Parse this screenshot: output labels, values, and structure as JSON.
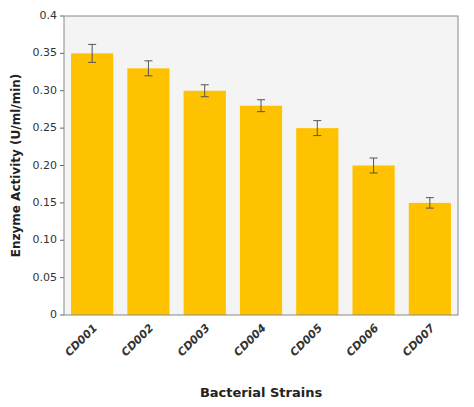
{
  "chart_data": {
    "type": "bar",
    "categories": [
      "CD001",
      "CD002",
      "CD003",
      "CD004",
      "CD005",
      "CD006",
      "CD007"
    ],
    "values": [
      0.35,
      0.33,
      0.3,
      0.28,
      0.25,
      0.2,
      0.15
    ],
    "errors": [
      0.012,
      0.01,
      0.008,
      0.008,
      0.01,
      0.01,
      0.007
    ],
    "color": "#FFC200",
    "xlabel": "Bacterial Strains",
    "ylabel": "Enzyme Activity (U/ml/min)",
    "ylim": [
      0,
      0.4
    ],
    "yticks": [
      0,
      0.05,
      {
        "value": 0.1,
        "label": "0.10"
      },
      0.15,
      {
        "value": 0.2,
        "label": "0.20"
      },
      0.25,
      {
        "value": 0.3,
        "label": "0.30"
      },
      0.35,
      0.4
    ],
    "grid": false
  }
}
